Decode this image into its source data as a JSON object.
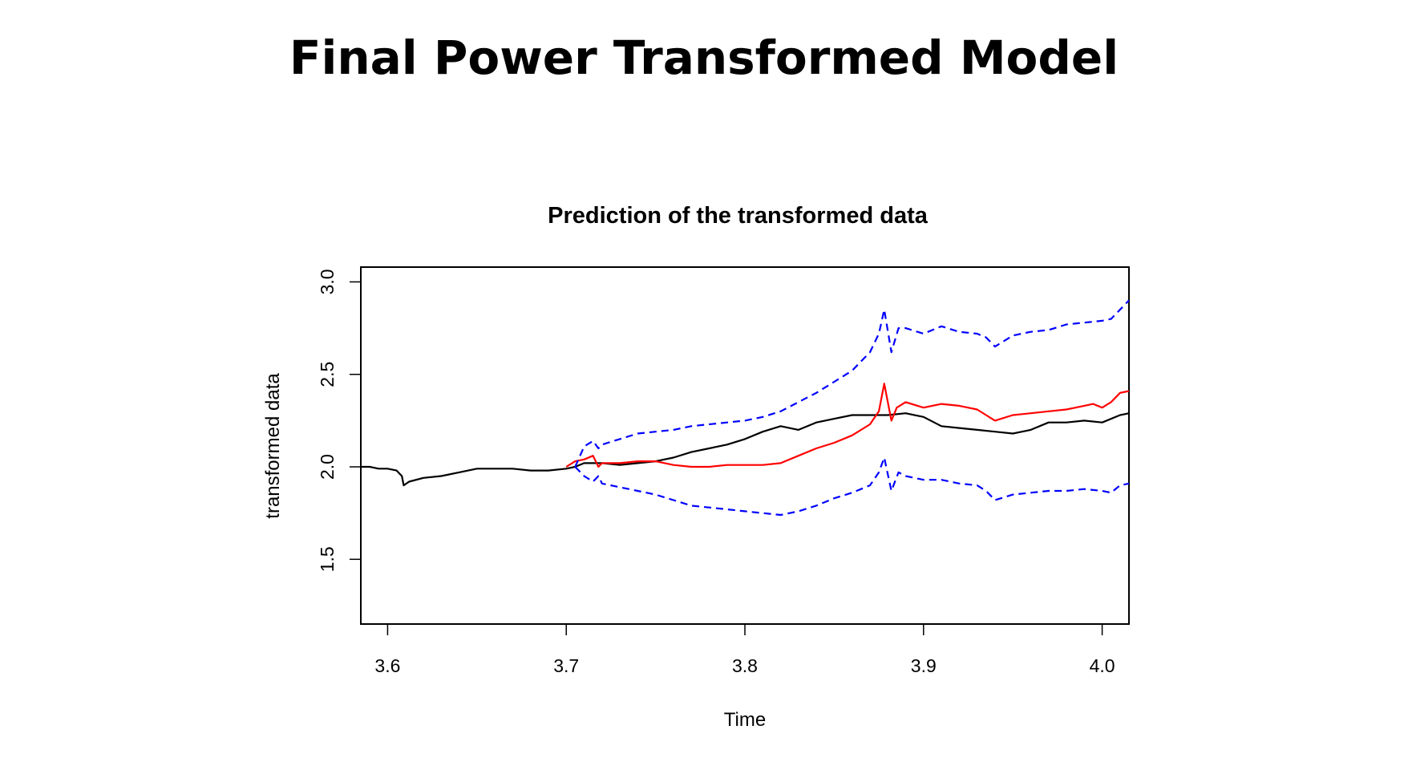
{
  "slide": {
    "title": "Final Power Transformed Model"
  },
  "chart_data": {
    "type": "line",
    "title": "Prediction of the transformed data",
    "xlabel": "Time",
    "ylabel": "transformed data",
    "xlim": [
      3.585,
      4.015
    ],
    "ylim": [
      1.15,
      3.08
    ],
    "xticks": [
      3.6,
      3.7,
      3.8,
      3.9,
      4.0
    ],
    "xtick_labels": [
      "3.6",
      "3.7",
      "3.8",
      "3.9",
      "4.0"
    ],
    "yticks": [
      1.5,
      2.0,
      2.5,
      3.0
    ],
    "ytick_labels": [
      "1.5",
      "2.0",
      "2.5",
      "3.0"
    ],
    "grid": false,
    "series": [
      {
        "color": "#000000",
        "dash": "solid",
        "x": [
          3.585,
          3.59,
          3.595,
          3.6,
          3.605,
          3.608,
          3.609,
          3.612,
          3.62,
          3.63,
          3.64,
          3.65,
          3.66,
          3.67,
          3.68,
          3.69,
          3.7,
          3.705,
          3.71,
          3.72,
          3.73,
          3.74,
          3.75,
          3.76,
          3.77,
          3.78,
          3.79,
          3.8,
          3.81,
          3.82,
          3.83,
          3.84,
          3.85,
          3.86,
          3.87,
          3.88,
          3.89,
          3.9,
          3.91,
          3.92,
          3.93,
          3.94,
          3.95,
          3.96,
          3.97,
          3.98,
          3.99,
          4.0,
          4.01,
          4.015
        ],
        "y": [
          2.0,
          2.0,
          1.99,
          1.99,
          1.98,
          1.95,
          1.9,
          1.92,
          1.94,
          1.95,
          1.97,
          1.99,
          1.99,
          1.99,
          1.98,
          1.98,
          1.99,
          2.0,
          2.02,
          2.02,
          2.01,
          2.02,
          2.03,
          2.05,
          2.08,
          2.1,
          2.12,
          2.15,
          2.19,
          2.22,
          2.2,
          2.24,
          2.26,
          2.28,
          2.28,
          2.28,
          2.29,
          2.27,
          2.22,
          2.21,
          2.2,
          2.19,
          2.18,
          2.2,
          2.24,
          2.24,
          2.25,
          2.24,
          2.28,
          2.29
        ]
      },
      {
        "color": "#ff0000",
        "dash": "solid",
        "x": [
          3.7,
          3.705,
          3.71,
          3.715,
          3.718,
          3.72,
          3.73,
          3.74,
          3.75,
          3.76,
          3.77,
          3.78,
          3.79,
          3.8,
          3.81,
          3.82,
          3.83,
          3.84,
          3.85,
          3.86,
          3.87,
          3.875,
          3.878,
          3.882,
          3.885,
          3.89,
          3.9,
          3.91,
          3.92,
          3.93,
          3.935,
          3.94,
          3.95,
          3.96,
          3.97,
          3.98,
          3.99,
          3.995,
          4.0,
          4.005,
          4.01,
          4.015
        ],
        "y": [
          2.0,
          2.03,
          2.04,
          2.06,
          2.0,
          2.02,
          2.02,
          2.03,
          2.03,
          2.01,
          2.0,
          2.0,
          2.01,
          2.01,
          2.01,
          2.02,
          2.06,
          2.1,
          2.13,
          2.17,
          2.23,
          2.3,
          2.45,
          2.25,
          2.32,
          2.35,
          2.32,
          2.34,
          2.33,
          2.31,
          2.28,
          2.25,
          2.28,
          2.29,
          2.3,
          2.31,
          2.33,
          2.34,
          2.32,
          2.35,
          2.4,
          2.41
        ]
      },
      {
        "color": "#0000ff",
        "dash": "dashed",
        "x": [
          3.705,
          3.71,
          3.715,
          3.718,
          3.72,
          3.73,
          3.74,
          3.75,
          3.76,
          3.77,
          3.78,
          3.79,
          3.8,
          3.81,
          3.82,
          3.83,
          3.84,
          3.85,
          3.86,
          3.87,
          3.875,
          3.878,
          3.882,
          3.886,
          3.89,
          3.9,
          3.91,
          3.92,
          3.93,
          3.935,
          3.94,
          3.95,
          3.96,
          3.97,
          3.98,
          3.99,
          4.0,
          4.005,
          4.01,
          4.015
        ],
        "y": [
          2.0,
          2.11,
          2.14,
          2.1,
          2.12,
          2.15,
          2.18,
          2.19,
          2.2,
          2.22,
          2.23,
          2.24,
          2.25,
          2.27,
          2.3,
          2.35,
          2.4,
          2.46,
          2.52,
          2.62,
          2.72,
          2.85,
          2.62,
          2.75,
          2.75,
          2.72,
          2.76,
          2.73,
          2.72,
          2.7,
          2.65,
          2.71,
          2.73,
          2.74,
          2.77,
          2.78,
          2.79,
          2.8,
          2.85,
          2.9
        ]
      },
      {
        "color": "#0000ff",
        "dash": "dashed",
        "x": [
          3.705,
          3.71,
          3.715,
          3.718,
          3.72,
          3.73,
          3.74,
          3.75,
          3.76,
          3.77,
          3.78,
          3.79,
          3.8,
          3.81,
          3.82,
          3.83,
          3.84,
          3.85,
          3.86,
          3.87,
          3.875,
          3.878,
          3.882,
          3.886,
          3.89,
          3.9,
          3.91,
          3.92,
          3.93,
          3.935,
          3.94,
          3.95,
          3.96,
          3.97,
          3.98,
          3.99,
          4.0,
          4.005,
          4.01,
          4.015
        ],
        "y": [
          2.0,
          1.95,
          1.92,
          1.95,
          1.91,
          1.89,
          1.87,
          1.85,
          1.82,
          1.79,
          1.78,
          1.77,
          1.76,
          1.75,
          1.74,
          1.76,
          1.79,
          1.83,
          1.86,
          1.9,
          1.97,
          2.05,
          1.87,
          1.97,
          1.95,
          1.93,
          1.93,
          1.91,
          1.9,
          1.87,
          1.82,
          1.85,
          1.86,
          1.87,
          1.87,
          1.88,
          1.87,
          1.86,
          1.9,
          1.91
        ]
      }
    ]
  }
}
